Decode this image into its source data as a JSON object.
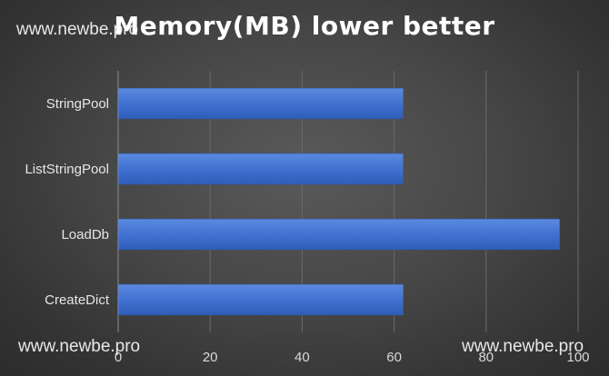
{
  "chart_data": {
    "type": "bar",
    "orientation": "horizontal",
    "title": "Memory(MB) lower better",
    "categories": [
      "StringPool",
      "ListStringPool",
      "LoadDb",
      "CreateDict"
    ],
    "values": [
      62,
      62,
      96,
      62
    ],
    "xlim": [
      0,
      100
    ],
    "xticks": [
      0,
      20,
      40,
      60,
      80,
      100
    ],
    "grid": true,
    "bar_color": "#4472c4"
  },
  "watermarks": [
    "www.newbe.pro",
    "www.newbe.pro",
    "www.newbe.pro"
  ]
}
